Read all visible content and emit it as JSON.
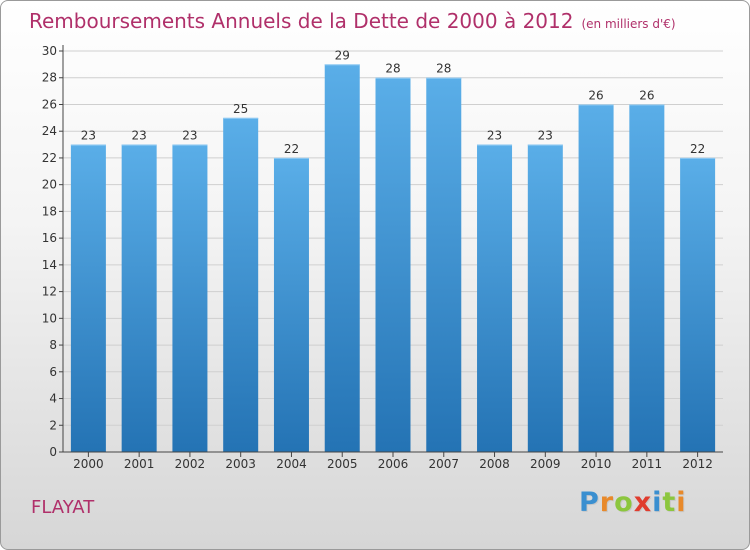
{
  "header": {
    "title": "Remboursements Annuels de la Dette de 2000 à 2012",
    "unit": "(en milliers d'€)"
  },
  "footer": {
    "location": "FLAYAT",
    "brand": "Proxiti"
  },
  "brand_letters": [
    {
      "ch": "P",
      "color": "#3a8fd0"
    },
    {
      "ch": "r",
      "color": "#e8892a"
    },
    {
      "ch": "o",
      "color": "#8cc63e"
    },
    {
      "ch": "x",
      "color": "#e03c2e"
    },
    {
      "ch": "i",
      "color": "#3a8fd0"
    },
    {
      "ch": "t",
      "color": "#8cc63e"
    },
    {
      "ch": "i",
      "color": "#e8892a"
    }
  ],
  "chart_data": {
    "type": "bar",
    "title": "Remboursements Annuels de la Dette de 2000 à 2012",
    "subtitle": "(en milliers d'€)",
    "categories": [
      "2000",
      "2001",
      "2002",
      "2003",
      "2004",
      "2005",
      "2006",
      "2007",
      "2008",
      "2009",
      "2010",
      "2011",
      "2012"
    ],
    "values": [
      23,
      23,
      23,
      25,
      22,
      29,
      28,
      28,
      23,
      23,
      26,
      26,
      22
    ],
    "ylim": [
      0,
      30
    ],
    "yticks": [
      0,
      2,
      4,
      6,
      8,
      10,
      12,
      14,
      16,
      18,
      20,
      22,
      24,
      26,
      28,
      30
    ],
    "grid": true,
    "colors": {
      "bar_top": "#5aaee8",
      "bar_bottom": "#2473b4",
      "grid": "#cfcfcf",
      "axis": "#444444",
      "text": "#333333"
    }
  }
}
